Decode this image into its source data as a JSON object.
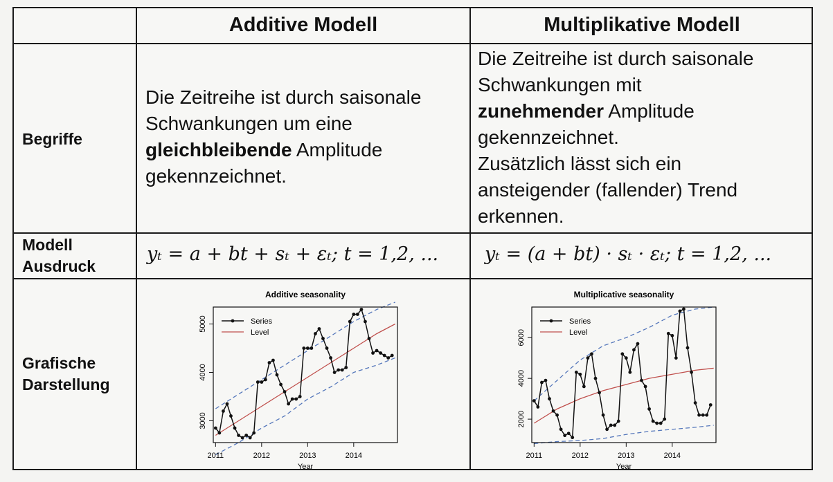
{
  "headers": {
    "additive": "Additive Modell",
    "multiplicative": "Multiplikative Modell"
  },
  "rows": {
    "begriffe": "Begriffe",
    "modell_line1": "Modell",
    "modell_line2": "Ausdruck",
    "grafisch_line1": "Grafische",
    "grafisch_line2": "Darstellung"
  },
  "additive_text": {
    "l1": "Die Zeitreihe ist durch saisonale",
    "l2": "Schwankungen um eine",
    "l3_bold": "gleichbleibende",
    "l3_rest": " Amplitude",
    "l4": "gekennzeichnet."
  },
  "multiplicative_text": {
    "l1": "Die Zeitreihe ist durch saisonale",
    "l2": "Schwankungen mit",
    "l3_bold": "zunehmender",
    "l3_rest": " Amplitude",
    "l4": "gekennzeichnet.",
    "l5": "Zusätzlich lässt sich ein",
    "l6": "ansteigender (fallender) Trend",
    "l7": "erkennen."
  },
  "formulas": {
    "additive": "yₜ = a + bt + sₜ + εₜ;   t = 1,2, ...",
    "multiplicative": "yₜ = (a + bt) · sₜ · εₜ;   t = 1,2, ..."
  },
  "chart_data": [
    {
      "type": "line",
      "title": "Additive seasonality",
      "xlabel": "Year",
      "ylabel": "",
      "xlim": [
        2010.95,
        2014.95
      ],
      "ylim": [
        2550,
        5350
      ],
      "xticks": [
        "2011",
        "2012",
        "2013",
        "2014"
      ],
      "yticks": [
        "3000",
        "4000",
        "5000"
      ],
      "legend": [
        "Series",
        "Level"
      ],
      "legend_position": "top-left",
      "colors": {
        "series": "#111111",
        "level": "#c0504d",
        "band": "#5577bb"
      },
      "series": [
        {
          "name": "Series",
          "x": [
            2011,
            2011.083,
            2011.167,
            2011.25,
            2011.333,
            2011.417,
            2011.5,
            2011.583,
            2011.667,
            2011.75,
            2011.833,
            2011.917,
            2012,
            2012.083,
            2012.167,
            2012.25,
            2012.333,
            2012.417,
            2012.5,
            2012.583,
            2012.667,
            2012.75,
            2012.833,
            2012.917,
            2013,
            2013.083,
            2013.167,
            2013.25,
            2013.333,
            2013.417,
            2013.5,
            2013.583,
            2013.667,
            2013.75,
            2013.833,
            2013.917,
            2014,
            2014.083,
            2014.167,
            2014.25,
            2014.333,
            2014.417,
            2014.5,
            2014.583,
            2014.667,
            2014.75,
            2014.833
          ],
          "values": [
            2850,
            2750,
            3200,
            3350,
            3100,
            2850,
            2700,
            2650,
            2700,
            2650,
            2750,
            3800,
            3800,
            3850,
            4200,
            4250,
            3950,
            3750,
            3600,
            3350,
            3450,
            3450,
            3500,
            4500,
            4500,
            4500,
            4800,
            4900,
            4700,
            4500,
            4300,
            4000,
            4050,
            4050,
            4100,
            5050,
            5200,
            5200,
            5300,
            5050,
            4700,
            4400,
            4450,
            4400,
            4350,
            4300,
            4350
          ]
        },
        {
          "name": "Level",
          "x": [
            2011,
            2011.5,
            2012,
            2012.5,
            2013,
            2013.5,
            2014,
            2014.5,
            2014.9
          ],
          "values": [
            2700,
            3000,
            3300,
            3600,
            3900,
            4200,
            4500,
            4800,
            5000
          ]
        }
      ],
      "bands": {
        "upper": [
          3250,
          3550,
          3850,
          4150,
          4450,
          4750,
          5050,
          5300,
          5450
        ],
        "lower": [
          2300,
          2550,
          2850,
          3100,
          3450,
          3700,
          4000,
          4150,
          4300
        ]
      }
    },
    {
      "type": "line",
      "title": "Multiplicative seasonality",
      "xlabel": "Year",
      "ylabel": "",
      "xlim": [
        2010.95,
        2014.95
      ],
      "ylim": [
        850,
        7500
      ],
      "xticks": [
        "2011",
        "2012",
        "2013",
        "2014"
      ],
      "yticks": [
        "2000",
        "4000",
        "6000"
      ],
      "legend": [
        "Series",
        "Level"
      ],
      "legend_position": "top-left",
      "colors": {
        "series": "#111111",
        "level": "#c0504d",
        "band": "#5577bb"
      },
      "series": [
        {
          "name": "Series",
          "x": [
            2011,
            2011.083,
            2011.167,
            2011.25,
            2011.333,
            2011.417,
            2011.5,
            2011.583,
            2011.667,
            2011.75,
            2011.833,
            2011.917,
            2012,
            2012.083,
            2012.167,
            2012.25,
            2012.333,
            2012.417,
            2012.5,
            2012.583,
            2012.667,
            2012.75,
            2012.833,
            2012.917,
            2013,
            2013.083,
            2013.167,
            2013.25,
            2013.333,
            2013.417,
            2013.5,
            2013.583,
            2013.667,
            2013.75,
            2013.833,
            2013.917,
            2014,
            2014.083,
            2014.167,
            2014.25,
            2014.333,
            2014.417,
            2014.5,
            2014.583,
            2014.667,
            2014.75,
            2014.833
          ],
          "values": [
            2900,
            2600,
            3800,
            3900,
            3000,
            2400,
            2200,
            1500,
            1200,
            1300,
            1100,
            4300,
            4200,
            3600,
            5000,
            5200,
            4000,
            3300,
            2200,
            1500,
            1700,
            1700,
            1900,
            5200,
            5000,
            4300,
            5400,
            5700,
            3900,
            3600,
            2500,
            1900,
            1800,
            1800,
            2000,
            6200,
            6100,
            5000,
            7300,
            7400,
            5500,
            4300,
            2800,
            2200,
            2200,
            2200,
            2700
          ]
        },
        {
          "name": "Level",
          "x": [
            2011,
            2011.5,
            2012,
            2012.5,
            2013,
            2013.5,
            2014,
            2014.5,
            2014.9
          ],
          "values": [
            1800,
            2500,
            3000,
            3400,
            3700,
            4000,
            4200,
            4400,
            4500
          ]
        }
      ],
      "bands": {
        "upper": [
          2900,
          3900,
          4900,
          5600,
          6000,
          6500,
          7100,
          7400,
          7500
        ],
        "lower": [
          800,
          900,
          950,
          1050,
          1250,
          1400,
          1500,
          1600,
          1700
        ]
      }
    }
  ]
}
